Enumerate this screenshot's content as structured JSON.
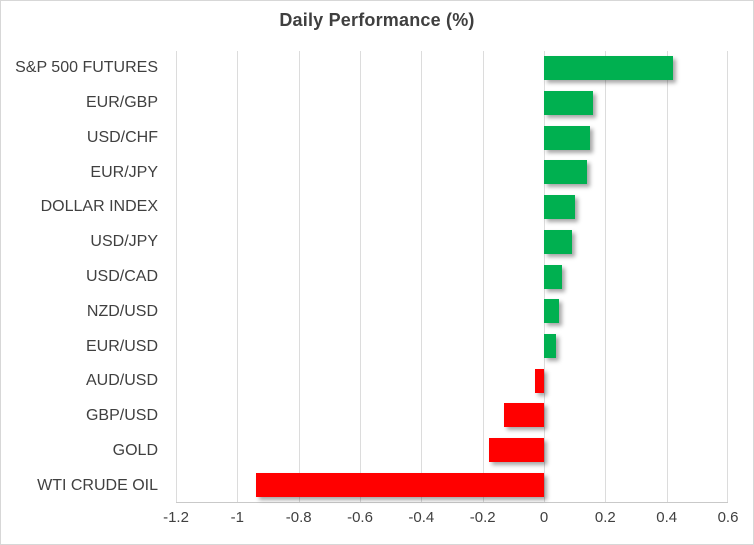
{
  "chart_data": {
    "type": "bar",
    "orientation": "horizontal",
    "title": "Daily Performance (%)",
    "categories": [
      "S&P 500 FUTURES",
      "EUR/GBP",
      "USD/CHF",
      "EUR/JPY",
      "DOLLAR INDEX",
      "USD/JPY",
      "USD/CAD",
      "NZD/USD",
      "EUR/USD",
      "AUD/USD",
      "GBP/USD",
      "GOLD",
      "WTI CRUDE OIL"
    ],
    "values": [
      0.42,
      0.16,
      0.15,
      0.14,
      0.1,
      0.09,
      0.06,
      0.05,
      0.04,
      -0.03,
      -0.13,
      -0.18,
      -0.94
    ],
    "xlim": [
      -1.2,
      0.6
    ],
    "xticks": [
      -1.2,
      -1,
      -0.8,
      -0.6,
      -0.4,
      -0.2,
      0,
      0.2,
      0.4,
      0.6
    ],
    "xtick_labels": [
      "-1.2",
      "-1",
      "-0.8",
      "-0.6",
      "-0.4",
      "-0.2",
      "0",
      "0.2",
      "0.4",
      "0.6"
    ],
    "grid": true,
    "legend": false,
    "positive_color": "#00B050",
    "negative_color": "#FF0000"
  }
}
